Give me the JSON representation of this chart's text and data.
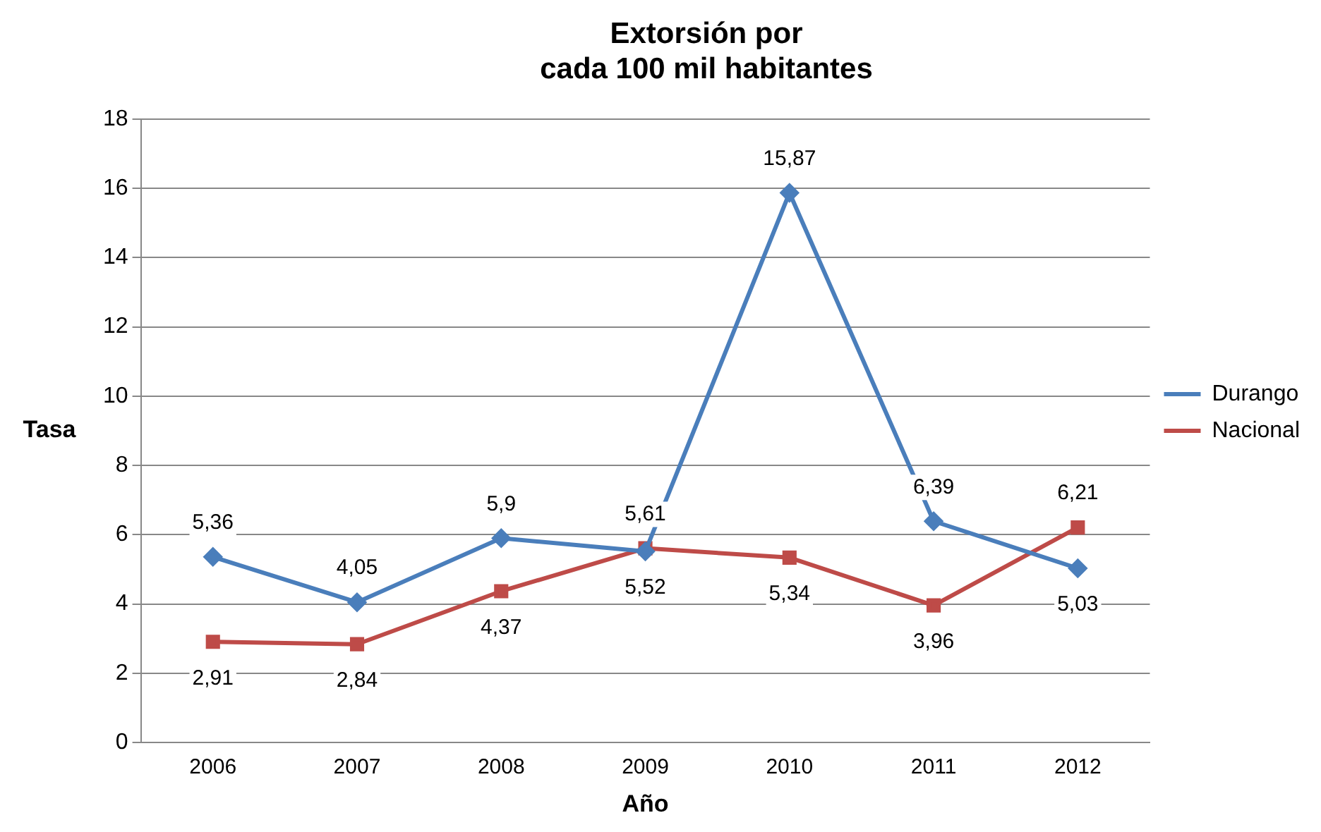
{
  "chart_data": {
    "type": "line",
    "title": "Extorsión por\ncada 100 mil habitantes",
    "xlabel": "Año",
    "ylabel": "Tasa",
    "categories": [
      "2006",
      "2007",
      "2008",
      "2009",
      "2010",
      "2011",
      "2012"
    ],
    "series": [
      {
        "name": "Durango",
        "color": "#4a7ebb",
        "marker": "diamond",
        "values": [
          5.36,
          4.05,
          5.9,
          5.52,
          15.87,
          6.39,
          5.03
        ],
        "value_labels": [
          "5,36",
          "4,05",
          "5,9",
          "5,52",
          "15,87",
          "6,39",
          "5,03"
        ]
      },
      {
        "name": "Nacional",
        "color": "#be4b48",
        "marker": "square",
        "values": [
          2.91,
          2.84,
          4.37,
          5.61,
          5.34,
          3.96,
          6.21
        ],
        "value_labels": [
          "2,91",
          "2,84",
          "4,37",
          "5,61",
          "5,34",
          "3,96",
          "6,21"
        ]
      }
    ],
    "ylim": [
      0,
      18
    ],
    "yticks": [
      0,
      2,
      4,
      6,
      8,
      10,
      12,
      14,
      16,
      18
    ],
    "grid": "y",
    "legend": "right",
    "line_style": "solid"
  }
}
